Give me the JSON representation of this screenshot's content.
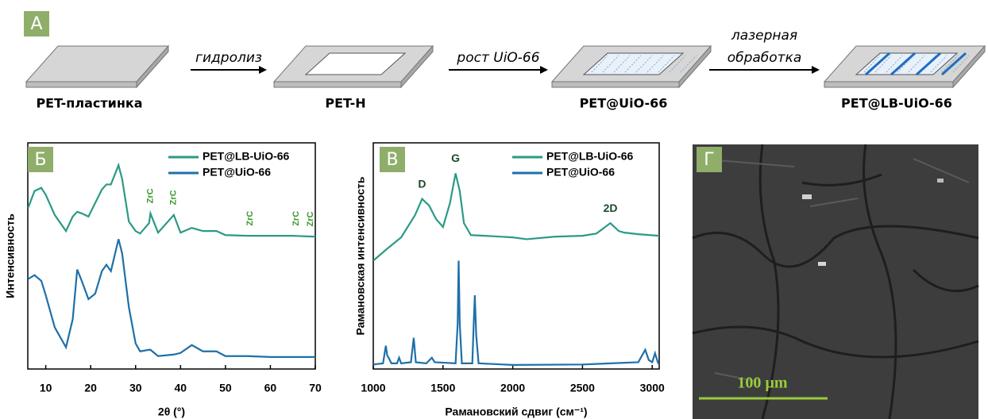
{
  "panel_a": {
    "label": "А",
    "steps": [
      "PET-пластинка",
      "PET-H",
      "PET@UiO-66",
      "PET@LB-UiO-66"
    ],
    "arrows": [
      [
        "гидролиз"
      ],
      [
        "рост UiO-66"
      ],
      [
        "лазерная",
        "обработка"
      ]
    ]
  },
  "chart_data": [
    {
      "type": "line",
      "panel_label": "Б",
      "xlabel": "2θ (°)",
      "ylabel": "Интенсивность",
      "xlim": [
        6,
        70
      ],
      "xticks": [
        10,
        20,
        30,
        40,
        50,
        60,
        70
      ],
      "ylim": [
        0,
        100
      ],
      "legend": "top-right",
      "x": [
        6,
        7.5,
        9,
        10,
        12,
        14.5,
        16,
        17,
        18,
        19.5,
        21,
        22.5,
        23.5,
        24.5,
        26.2,
        27,
        28.5,
        30,
        31,
        33,
        33.3,
        35,
        38.5,
        40,
        42.5,
        45,
        48,
        50,
        55,
        60,
        65,
        70
      ],
      "series": [
        {
          "name": "PET@LB-UiO-66",
          "color": "#2b9a85",
          "values": [
            70.9,
            78.7,
            80.1,
            77,
            68.1,
            61,
            67.4,
            69.5,
            68.8,
            67.4,
            73.4,
            79.4,
            81.6,
            81.6,
            90.1,
            84,
            65.2,
            61,
            59.9,
            64.5,
            68.8,
            60.3,
            68.1,
            60.3,
            62.4,
            61,
            61,
            59.2,
            58.9,
            58.9,
            58.9,
            58.5
          ]
        },
        {
          "name": "PET@UiO-66",
          "color": "#1e70a8",
          "values": [
            39.7,
            41.5,
            39,
            32.6,
            18.4,
            9.6,
            22,
            44,
            39,
            30.9,
            33.3,
            43.3,
            46.1,
            43.3,
            57.4,
            51.1,
            27.3,
            11.3,
            7.8,
            8.5,
            8.5,
            5.7,
            6.4,
            7.1,
            10.6,
            7.8,
            7.8,
            5.7,
            5.7,
            5.3,
            5.3,
            5.3
          ]
        }
      ],
      "annotations": [
        {
          "text": "ZrC",
          "x": 33.3
        },
        {
          "text": "ZrC",
          "x": 38.5
        },
        {
          "text": "ZrC",
          "x": 55.5
        },
        {
          "text": "ZrC",
          "x": 65.8
        },
        {
          "text": "ZrC",
          "x": 69
        }
      ],
      "annotation_color": "#3a9a2e",
      "annotation_rotate": true
    },
    {
      "type": "line",
      "panel_label": "В",
      "xlabel": "Рамановский сдвиг (см⁻¹)",
      "ylabel": "Рамановская интенсивность",
      "xlim": [
        1000,
        3050
      ],
      "xticks": [
        1000,
        1500,
        2000,
        2500,
        3000
      ],
      "ylim": [
        0,
        100
      ],
      "legend": "top-right",
      "series": [
        {
          "name": "PET@LB-UiO-66",
          "color": "#2b9a85",
          "x": [
            1000,
            1100,
            1200,
            1300,
            1350,
            1400,
            1450,
            1500,
            1550,
            1590,
            1620,
            1650,
            1700,
            1800,
            2000,
            2100,
            2300,
            2500,
            2600,
            2700,
            2760,
            2800,
            2900,
            3050
          ],
          "values": [
            47.9,
            53.2,
            58.2,
            68.1,
            75.2,
            72.3,
            66.3,
            62.8,
            73.4,
            86.5,
            78.7,
            64.5,
            59.2,
            58.9,
            58.2,
            57.4,
            58.5,
            58.9,
            59.9,
            64.5,
            61,
            60.3,
            59.6,
            58.9
          ]
        },
        {
          "name": "PET@UiO-66",
          "color": "#1e70a8",
          "x": [
            1000,
            1070,
            1090,
            1100,
            1110,
            1130,
            1170,
            1185,
            1200,
            1270,
            1290,
            1305,
            1380,
            1420,
            1440,
            1590,
            1605,
            1612,
            1620,
            1635,
            1710,
            1720,
            1728,
            1738,
            1755,
            2000,
            2500,
            2900,
            2950,
            2975,
            3000,
            3020,
            3040,
            3050
          ],
          "values": [
            2,
            2.5,
            10.3,
            6,
            5,
            2.5,
            2.5,
            5,
            2.5,
            3,
            13.8,
            3,
            2.5,
            5,
            3,
            2.5,
            20,
            47.9,
            20,
            2.5,
            2.5,
            20,
            32.6,
            15,
            2.5,
            1.8,
            2,
            3,
            8.5,
            4,
            3,
            7,
            3,
            2
          ]
        }
      ],
      "annotations": [
        {
          "text": "D",
          "x": 1350
        },
        {
          "text": "G",
          "x": 1590
        },
        {
          "text": "2D",
          "x": 2700
        }
      ],
      "annotation_color": "#1d4a2a",
      "annotation_rotate": false
    }
  ],
  "panel_g": {
    "label": "Г",
    "scale_bar": "100 µm"
  }
}
